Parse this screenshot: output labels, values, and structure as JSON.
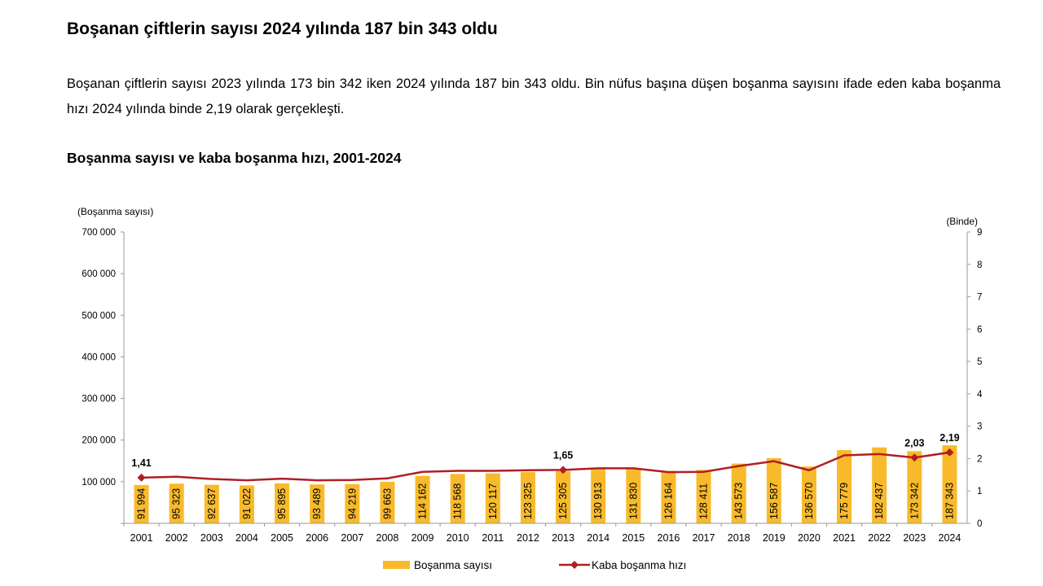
{
  "headline": "Boşanan çiftlerin sayısı 2024 yılında 187 bin 343 oldu",
  "paragraph": "Boşanan çiftlerin sayısı 2023 yılında 173 bin 342 iken 2024 yılında 187 bin 343 oldu. Bin nüfus başına düşen boşanma sayısını ifade eden kaba boşanma hızı 2024 yılında binde 2,19 olarak gerçekleşti.",
  "colors": {
    "bar": "#F8BA2A",
    "line": "#B01E23",
    "axis": "#9A9A9A"
  },
  "chart_data": {
    "type": "bar",
    "title": "Boşanma sayısı ve kaba boşanma hızı, 2001-2024",
    "y_left_label": "(Boşanma sayısı)",
    "y_right_label": "(Binde)",
    "y_left_lim": [
      0,
      700000
    ],
    "y_left_ticks": [
      "0",
      "100 000",
      "200 000",
      "300 000",
      "400 000",
      "500 000",
      "600 000",
      "700 000"
    ],
    "y_right_lim": [
      0,
      9
    ],
    "y_right_ticks": [
      "0",
      "1",
      "2",
      "3",
      "4",
      "5",
      "6",
      "7",
      "8",
      "9"
    ],
    "grid": false,
    "legend_position": "bottom",
    "categories": [
      "2001",
      "2002",
      "2003",
      "2004",
      "2005",
      "2006",
      "2007",
      "2008",
      "2009",
      "2010",
      "2011",
      "2012",
      "2013",
      "2014",
      "2015",
      "2016",
      "2017",
      "2018",
      "2019",
      "2020",
      "2021",
      "2022",
      "2023",
      "2024"
    ],
    "series": [
      {
        "name": "Boşanma sayısı",
        "type": "bar",
        "axis": "left",
        "values": [
          91994,
          95323,
          92637,
          91022,
          95895,
          93489,
          94219,
          99663,
          114162,
          118568,
          120117,
          123325,
          125305,
          130913,
          131830,
          126164,
          128411,
          143573,
          156587,
          136570,
          175779,
          182437,
          173342,
          187343
        ],
        "labels": [
          "91 994",
          "95 323",
          "92 637",
          "91 022",
          "95 895",
          "93 489",
          "94 219",
          "99 663",
          "114 162",
          "118 568",
          "120 117",
          "123 325",
          "125 305",
          "130 913",
          "131 830",
          "126 164",
          "128 411",
          "143 573",
          "156 587",
          "136 570",
          "175 779",
          "182 437",
          "173 342",
          "187 343"
        ]
      },
      {
        "name": "Kaba boşanma hızı",
        "type": "line",
        "axis": "right",
        "values": [
          1.41,
          1.44,
          1.37,
          1.33,
          1.38,
          1.33,
          1.34,
          1.39,
          1.59,
          1.62,
          1.62,
          1.64,
          1.65,
          1.7,
          1.7,
          1.58,
          1.59,
          1.77,
          1.92,
          1.64,
          2.1,
          2.14,
          2.03,
          2.19
        ],
        "annotations": [
          {
            "index": 0,
            "text": "1,41"
          },
          {
            "index": 12,
            "text": "1,65"
          },
          {
            "index": 22,
            "text": "2,03"
          },
          {
            "index": 23,
            "text": "2,19"
          }
        ]
      }
    ]
  }
}
